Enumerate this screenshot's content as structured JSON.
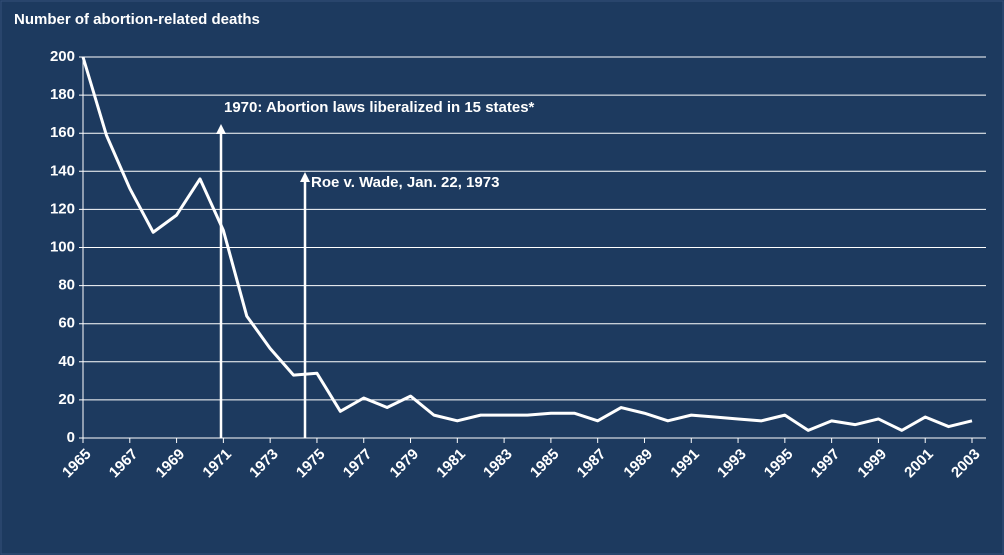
{
  "chart_data": {
    "type": "line",
    "title": "Number of abortion-related deaths",
    "annotations": [
      "1970: Abortion laws liberalized in 15 states*",
      "Roe v. Wade, Jan. 22, 1973"
    ],
    "x": [
      1965,
      1966,
      1967,
      1968,
      1969,
      1970,
      1971,
      1972,
      1973,
      1974,
      1975,
      1976,
      1977,
      1978,
      1979,
      1980,
      1981,
      1982,
      1983,
      1984,
      1985,
      1986,
      1987,
      1988,
      1989,
      1990,
      1991,
      1992,
      1993,
      1994,
      1995,
      1996,
      1997,
      1998,
      1999,
      2000,
      2001,
      2002,
      2003
    ],
    "series": [
      {
        "name": "Deaths",
        "color": "#ffffff",
        "values": [
          200,
          159,
          131,
          108,
          117,
          136,
          109,
          64,
          47,
          33,
          34,
          14,
          21,
          16,
          22,
          12,
          9,
          12,
          12,
          12,
          13,
          13,
          9,
          16,
          13,
          9,
          12,
          11,
          10,
          9,
          12,
          4,
          9,
          7,
          10,
          4,
          11,
          6,
          9
        ]
      }
    ],
    "xlim": [
      1965,
      2003
    ],
    "xticks": [
      1965,
      1967,
      1969,
      1971,
      1973,
      1975,
      1977,
      1979,
      1981,
      1983,
      1985,
      1987,
      1989,
      1991,
      1993,
      1995,
      1997,
      1999,
      2001,
      2003
    ],
    "ylim": [
      0,
      200
    ],
    "yticks": [
      0,
      20,
      40,
      60,
      80,
      100,
      120,
      140,
      160,
      180,
      200
    ],
    "grid": true
  }
}
